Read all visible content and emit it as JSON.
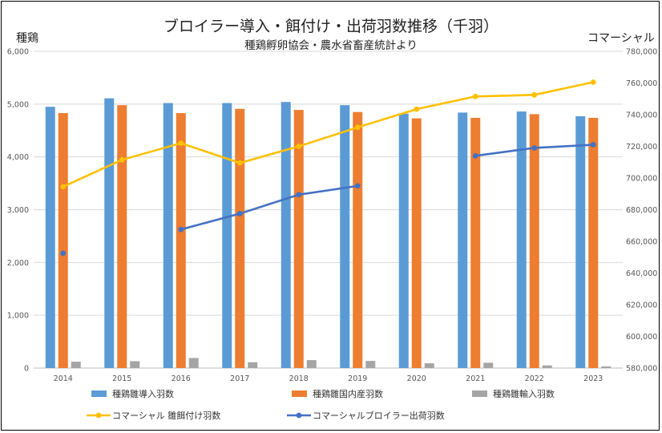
{
  "chart_data": {
    "type": "bar",
    "title": "ブロイラー導入・餌付け・出荷羽数推移（千羽）",
    "subtitle": "種鶏孵卵協会・農水省畜産統計より",
    "ylabel_left": "種鶏",
    "ylabel_right": "コマーシャル",
    "categories": [
      "2014",
      "2015",
      "2016",
      "2017",
      "2018",
      "2019",
      "2020",
      "2021",
      "2022",
      "2023"
    ],
    "ylim_left": [
      0,
      6000
    ],
    "ylim_right": [
      580000,
      780000
    ],
    "yticks_left": [
      "0",
      "1,000",
      "2,000",
      "3,000",
      "4,000",
      "5,000",
      "6,000"
    ],
    "yticks_right": [
      "580,000",
      "600,000",
      "620,000",
      "640,000",
      "660,000",
      "680,000",
      "700,000",
      "720,000",
      "740,000",
      "760,000",
      "780,000"
    ],
    "grid": true,
    "legend_position": "bottom",
    "bar_series": [
      {
        "name": "種鶏雛導入羽数",
        "color": "#5b9bd5",
        "axis": "left",
        "values": [
          4950,
          5110,
          5020,
          5020,
          5040,
          4980,
          4820,
          4840,
          4860,
          4770
        ]
      },
      {
        "name": "種鶏雛国内産羽数",
        "color": "#ed7d31",
        "axis": "left",
        "values": [
          4830,
          4980,
          4830,
          4910,
          4890,
          4850,
          4730,
          4740,
          4810,
          4740
        ]
      },
      {
        "name": "種鶏雛輸入羽数",
        "color": "#a5a5a5",
        "axis": "left",
        "values": [
          120,
          130,
          190,
          110,
          150,
          135,
          90,
          100,
          50,
          30
        ]
      }
    ],
    "line_series": [
      {
        "name": "コマーシャル 雛餌付け羽数",
        "color": "#ffc000",
        "axis": "right",
        "values": [
          694500,
          711500,
          722000,
          709500,
          720000,
          732000,
          743500,
          751500,
          752500,
          760500
        ]
      },
      {
        "name": "コマーシャルブロイラー出荷羽数",
        "color": "#4472c4",
        "axis": "right",
        "values": [
          652500,
          null,
          667500,
          677500,
          689500,
          695000,
          null,
          714000,
          719000,
          721000
        ]
      }
    ]
  }
}
